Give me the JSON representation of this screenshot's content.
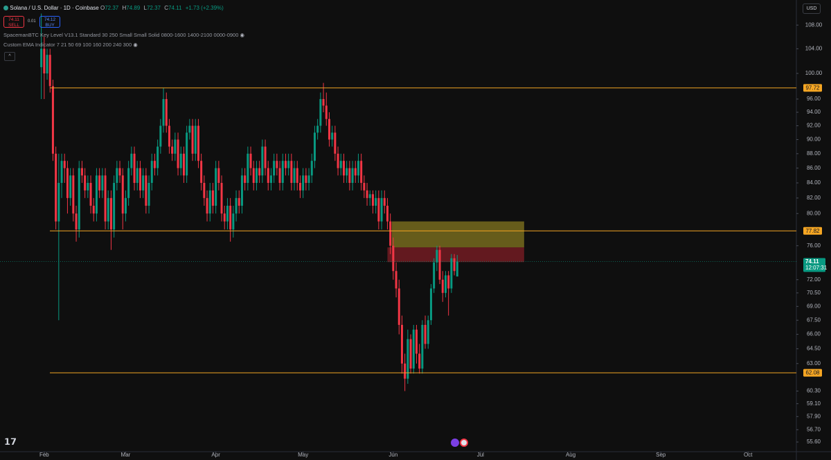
{
  "header": {
    "symbol": "Solana / U.S. Dollar · 1D · Coinbase",
    "open_label": "O",
    "open": 72.37,
    "high_label": "H",
    "high": 74.89,
    "low_label": "L",
    "low": 72.37,
    "close_label": "C",
    "close": 74.11,
    "change_text": "+1.73 (+2.39%)",
    "sell_price": 74.11,
    "sell_label": "SELL",
    "spread": 0.01,
    "buy_price": 74.12,
    "buy_label": "BUY",
    "indicator_1": "SpacemanBTC Key Level V13.1 Standard 30 250 Small Small Solid 0800-1600 1400-2100 0000-0900",
    "indicator_2": "Custom EMA Indicator 7 21 50 69 100 160 200 240 300",
    "currency": "USD"
  },
  "chart_data": {
    "type": "candlestick",
    "log_scale": true,
    "up_color": "#089981",
    "down_color": "#f23645",
    "candles": [
      [
        101,
        110,
        96,
        104
      ],
      [
        104,
        106,
        96,
        100
      ],
      [
        100,
        104,
        99,
        103
      ],
      [
        103,
        104,
        97,
        98
      ],
      [
        98,
        99,
        87,
        88
      ],
      [
        88,
        89,
        78,
        79
      ],
      [
        79,
        88,
        67.5,
        84
      ],
      [
        84,
        88,
        82,
        87
      ],
      [
        87,
        88,
        84,
        86
      ],
      [
        86,
        87,
        80,
        82
      ],
      [
        82,
        86,
        81,
        85
      ],
      [
        85,
        86,
        79,
        80
      ],
      [
        80,
        81,
        76.5,
        78
      ],
      [
        78,
        87,
        77,
        86
      ],
      [
        86,
        87,
        84,
        85
      ],
      [
        85,
        86,
        82,
        83
      ],
      [
        83,
        85,
        82,
        84
      ],
      [
        84,
        85,
        80,
        81
      ],
      [
        81,
        82,
        79,
        80
      ],
      [
        80,
        86,
        79,
        85
      ],
      [
        85,
        86,
        82,
        83
      ],
      [
        83,
        86,
        82,
        85
      ],
      [
        85,
        86,
        78,
        79
      ],
      [
        79,
        83,
        78,
        82
      ],
      [
        82,
        83,
        75.5,
        78
      ],
      [
        78,
        85,
        77,
        84
      ],
      [
        84,
        87,
        83,
        86
      ],
      [
        86,
        87,
        84,
        85
      ],
      [
        85,
        86,
        78,
        80
      ],
      [
        80,
        83,
        79,
        82
      ],
      [
        82,
        87,
        81,
        86
      ],
      [
        86,
        89,
        85,
        88
      ],
      [
        88,
        89,
        83,
        84
      ],
      [
        84,
        87,
        83,
        86
      ],
      [
        86,
        87,
        82,
        83
      ],
      [
        83,
        86,
        82,
        85
      ],
      [
        85,
        86,
        80,
        81
      ],
      [
        81,
        85,
        80,
        84
      ],
      [
        84,
        88,
        83,
        87
      ],
      [
        87,
        88,
        85,
        86
      ],
      [
        86,
        90,
        85,
        89
      ],
      [
        89,
        93,
        88,
        92
      ],
      [
        92,
        97.7,
        91,
        96
      ],
      [
        96,
        97,
        91,
        92
      ],
      [
        92,
        93,
        88,
        89
      ],
      [
        89,
        90,
        87,
        88
      ],
      [
        88,
        91,
        87,
        90
      ],
      [
        90,
        91,
        85,
        86
      ],
      [
        86,
        89,
        85,
        88
      ],
      [
        88,
        89,
        84,
        85
      ],
      [
        85,
        92,
        84,
        91
      ],
      [
        91,
        93,
        90,
        92
      ],
      [
        92,
        93,
        87,
        88
      ],
      [
        88,
        93,
        87,
        92
      ],
      [
        92,
        93,
        86,
        87
      ],
      [
        87,
        88,
        83,
        84
      ],
      [
        84,
        85,
        81,
        82
      ],
      [
        82,
        83,
        79,
        80
      ],
      [
        80,
        84,
        79,
        83
      ],
      [
        83,
        84,
        80,
        81
      ],
      [
        81,
        87,
        80,
        86
      ],
      [
        86,
        87,
        83,
        84
      ],
      [
        84,
        85,
        79,
        80
      ],
      [
        80,
        81,
        78,
        79
      ],
      [
        79,
        82,
        78,
        81
      ],
      [
        81,
        82,
        76.5,
        78
      ],
      [
        78,
        81,
        77,
        80
      ],
      [
        80,
        83,
        79,
        82
      ],
      [
        82,
        83,
        80,
        81
      ],
      [
        81,
        86,
        80,
        85
      ],
      [
        85,
        86,
        83,
        84
      ],
      [
        84,
        89,
        83,
        88
      ],
      [
        88,
        89,
        85,
        86
      ],
      [
        86,
        87,
        83,
        84
      ],
      [
        84,
        87,
        83,
        86
      ],
      [
        86,
        87,
        84,
        85
      ],
      [
        85,
        90,
        84,
        89
      ],
      [
        89,
        90,
        85,
        86
      ],
      [
        86,
        87,
        83,
        84
      ],
      [
        84,
        86,
        83,
        85
      ],
      [
        85,
        88,
        84,
        87
      ],
      [
        87,
        88,
        85,
        86
      ],
      [
        86,
        87,
        83,
        84
      ],
      [
        84,
        88,
        83,
        87
      ],
      [
        87,
        88,
        85,
        86
      ],
      [
        86,
        88,
        85,
        87
      ],
      [
        87,
        88,
        83,
        84
      ],
      [
        84,
        87,
        83,
        86
      ],
      [
        86,
        87,
        83,
        84
      ],
      [
        84,
        85,
        82,
        83
      ],
      [
        83,
        86,
        82,
        85
      ],
      [
        85,
        86,
        83,
        84
      ],
      [
        84,
        86,
        83,
        85
      ],
      [
        85,
        88,
        84,
        87
      ],
      [
        87,
        92,
        86,
        91
      ],
      [
        91,
        93,
        90,
        92
      ],
      [
        92,
        97,
        91,
        96
      ],
      [
        96,
        98.5,
        94,
        95
      ],
      [
        95,
        97,
        92,
        93
      ],
      [
        93,
        94,
        89,
        90
      ],
      [
        90,
        92,
        89,
        91
      ],
      [
        91,
        92,
        87,
        88
      ],
      [
        88,
        89,
        85,
        86
      ],
      [
        86,
        88,
        85,
        87
      ],
      [
        87,
        88,
        84,
        85
      ],
      [
        85,
        87,
        84,
        86
      ],
      [
        86,
        87,
        83,
        84
      ],
      [
        84,
        87,
        83,
        86
      ],
      [
        86,
        87,
        84,
        85
      ],
      [
        85,
        88,
        84,
        87
      ],
      [
        87,
        88,
        83,
        84
      ],
      [
        84,
        85,
        82,
        83
      ],
      [
        83,
        84,
        81,
        82
      ],
      [
        82,
        83,
        81,
        82.5
      ],
      [
        82.5,
        83,
        80,
        81
      ],
      [
        81,
        83,
        80,
        82
      ],
      [
        82,
        83,
        78,
        79
      ],
      [
        79,
        83,
        78,
        82
      ],
      [
        82,
        83,
        80,
        81
      ],
      [
        81,
        82,
        78,
        79
      ],
      [
        79,
        80,
        75,
        76
      ],
      [
        76,
        77,
        72,
        73
      ],
      [
        73,
        74,
        70,
        71
      ],
      [
        71,
        72,
        66,
        67
      ],
      [
        67,
        68,
        62,
        63
      ],
      [
        63,
        64,
        60.3,
        61.5
      ],
      [
        61.5,
        66.5,
        61,
        65.5
      ],
      [
        65.5,
        66,
        62,
        62.5
      ],
      [
        62.5,
        67,
        62,
        66.5
      ],
      [
        66.5,
        67,
        63,
        64
      ],
      [
        64,
        65,
        62,
        62.5
      ],
      [
        62.5,
        67.5,
        62,
        67
      ],
      [
        67,
        68,
        64.5,
        65
      ],
      [
        65,
        68,
        64.5,
        67.5
      ],
      [
        67.5,
        71.5,
        67,
        71
      ],
      [
        71,
        74.5,
        70.5,
        74
      ],
      [
        74,
        76,
        73,
        75.5
      ],
      [
        75.5,
        76,
        71.5,
        72
      ],
      [
        72,
        73,
        69.5,
        70.5
      ],
      [
        70.5,
        73,
        70,
        72.5
      ],
      [
        72.5,
        73,
        68,
        71
      ],
      [
        71,
        75,
        70.5,
        74.5
      ],
      [
        74.5,
        75,
        72.5,
        73
      ],
      [
        72.37,
        74.89,
        72.37,
        74.11
      ]
    ],
    "xlim": [
      -14.2,
      259.6
    ],
    "xticks": [
      {
        "value": 1,
        "label": "Feb"
      },
      {
        "value": 29,
        "label": "Mar"
      },
      {
        "value": 60,
        "label": "Apr"
      },
      {
        "value": 90,
        "label": "May"
      },
      {
        "value": 121,
        "label": "Jun"
      },
      {
        "value": 151,
        "label": "Jul"
      },
      {
        "value": 182,
        "label": "Aug"
      },
      {
        "value": 213,
        "label": "Sep"
      },
      {
        "value": 243,
        "label": "Oct"
      }
    ],
    "ylim": [
      54.75,
      112.4
    ],
    "yticks": [
      {
        "value": 108,
        "label": "108.00"
      },
      {
        "value": 104,
        "label": "104.00"
      },
      {
        "value": 100,
        "label": "100.00"
      },
      {
        "value": 96,
        "label": "96.00"
      },
      {
        "value": 94,
        "label": "94.00"
      },
      {
        "value": 92,
        "label": "92.00"
      },
      {
        "value": 90,
        "label": "90.00"
      },
      {
        "value": 88,
        "label": "88.00"
      },
      {
        "value": 86,
        "label": "86.00"
      },
      {
        "value": 84,
        "label": "84.00"
      },
      {
        "value": 82,
        "label": "82.00"
      },
      {
        "value": 80,
        "label": "80.00"
      },
      {
        "value": 76,
        "label": "76.00"
      },
      {
        "value": 72,
        "label": "72.00"
      },
      {
        "value": 70.5,
        "label": "70.50"
      },
      {
        "value": 69,
        "label": "69.00"
      },
      {
        "value": 67.5,
        "label": "67.50"
      },
      {
        "value": 66,
        "label": "66.00"
      },
      {
        "value": 64.5,
        "label": "64.50"
      },
      {
        "value": 63,
        "label": "63.00"
      },
      {
        "value": 60.3,
        "label": "60.30"
      },
      {
        "value": 59.1,
        "label": "59.10"
      },
      {
        "value": 57.9,
        "label": "57.90"
      },
      {
        "value": 56.7,
        "label": "56.70"
      },
      {
        "value": 55.6,
        "label": "55.60"
      }
    ],
    "levels": [
      {
        "value": 97.72,
        "color": "#f5a623"
      },
      {
        "value": 77.82,
        "color": "#f5a623"
      },
      {
        "value": 62.08,
        "color": "#f5a623"
      }
    ],
    "zones": [
      {
        "start": 120.5,
        "end": 166,
        "top": 79,
        "bottom": 75.8,
        "color": "rgba(190,170,40,0.5)"
      },
      {
        "start": 119,
        "end": 166,
        "top": 75.8,
        "bottom": 74.05,
        "color": "rgba(170,35,45,0.55)"
      }
    ],
    "last_price": 74.11,
    "countdown": "12:07:31",
    "last_color": "#089981"
  }
}
